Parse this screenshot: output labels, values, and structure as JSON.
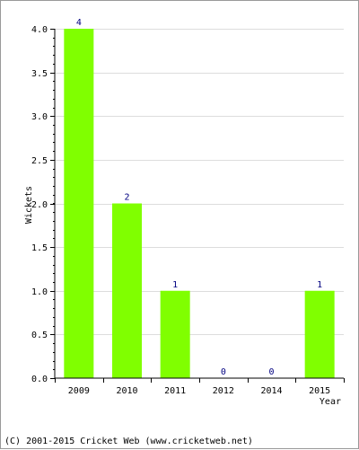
{
  "chart_data": {
    "type": "bar",
    "categories": [
      "2009",
      "2010",
      "2011",
      "2012",
      "2014",
      "2015"
    ],
    "values": [
      4,
      2,
      1,
      0,
      0,
      1
    ],
    "data_labels": [
      "4",
      "2",
      "1",
      "0",
      "0",
      "1"
    ],
    "xlabel": "Year",
    "ylabel": "Wickets",
    "ylim": [
      0,
      4.0
    ],
    "yticks": [
      0.0,
      0.5,
      1.0,
      1.5,
      2.0,
      2.5,
      3.0,
      3.5,
      4.0
    ],
    "ytick_labels": [
      "0.0",
      "0.5",
      "1.0",
      "1.5",
      "2.0",
      "2.5",
      "3.0",
      "3.5",
      "4.0"
    ],
    "grid": true,
    "bar_color": "#80ff00",
    "label_color": "#000080"
  },
  "footer": {
    "copyright": "(C) 2001-2015 Cricket Web (www.cricketweb.net)"
  }
}
